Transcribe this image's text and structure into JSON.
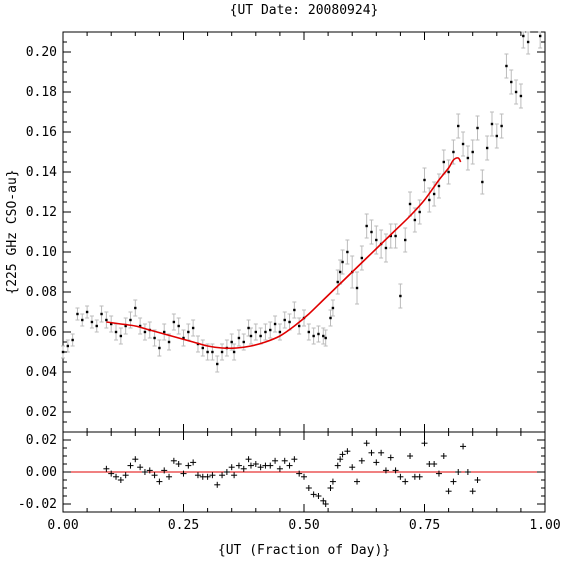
{
  "chart_data": {
    "type": "scatter",
    "title": "{UT Date: 20080924}",
    "xlabel": "{UT (Fraction of Day)}",
    "ylabel": "{225 GHz CSO-au}",
    "xlim": [
      0.0,
      1.0
    ],
    "ylim": [
      0.01,
      0.21
    ],
    "residual_ylim": [
      -0.025,
      0.025
    ],
    "x_ticks": [
      "0.00",
      "0.25",
      "0.50",
      "0.75",
      "1.00"
    ],
    "y_ticks": [
      "0.02",
      "0.04",
      "0.06",
      "0.08",
      "0.10",
      "0.12",
      "0.14",
      "0.16",
      "0.18",
      "0.20"
    ],
    "residual_ticks": [
      "0.02",
      "0.00",
      "-0.02"
    ],
    "grid": false,
    "colors": {
      "data": "#000000",
      "errorbars": "#bbbbbb",
      "fit": "#e00000",
      "zero_line": "#e00000"
    },
    "data_points": [
      {
        "x": 0.0,
        "y": 0.05,
        "e": 0.003
      },
      {
        "x": 0.01,
        "y": 0.053,
        "e": 0.003
      },
      {
        "x": 0.02,
        "y": 0.056,
        "e": 0.003
      },
      {
        "x": 0.03,
        "y": 0.069,
        "e": 0.003
      },
      {
        "x": 0.04,
        "y": 0.066,
        "e": 0.003
      },
      {
        "x": 0.05,
        "y": 0.07,
        "e": 0.003
      },
      {
        "x": 0.06,
        "y": 0.065,
        "e": 0.003
      },
      {
        "x": 0.07,
        "y": 0.063,
        "e": 0.003
      },
      {
        "x": 0.08,
        "y": 0.069,
        "e": 0.004
      },
      {
        "x": 0.09,
        "y": 0.066,
        "e": 0.004
      },
      {
        "x": 0.1,
        "y": 0.064,
        "e": 0.004
      },
      {
        "x": 0.11,
        "y": 0.06,
        "e": 0.004
      },
      {
        "x": 0.12,
        "y": 0.058,
        "e": 0.004
      },
      {
        "x": 0.13,
        "y": 0.063,
        "e": 0.004
      },
      {
        "x": 0.14,
        "y": 0.066,
        "e": 0.004
      },
      {
        "x": 0.15,
        "y": 0.072,
        "e": 0.004
      },
      {
        "x": 0.16,
        "y": 0.063,
        "e": 0.004
      },
      {
        "x": 0.17,
        "y": 0.06,
        "e": 0.004
      },
      {
        "x": 0.18,
        "y": 0.061,
        "e": 0.004
      },
      {
        "x": 0.19,
        "y": 0.057,
        "e": 0.004
      },
      {
        "x": 0.2,
        "y": 0.052,
        "e": 0.004
      },
      {
        "x": 0.21,
        "y": 0.06,
        "e": 0.004
      },
      {
        "x": 0.22,
        "y": 0.055,
        "e": 0.004
      },
      {
        "x": 0.23,
        "y": 0.065,
        "e": 0.004
      },
      {
        "x": 0.24,
        "y": 0.063,
        "e": 0.004
      },
      {
        "x": 0.25,
        "y": 0.057,
        "e": 0.004
      },
      {
        "x": 0.26,
        "y": 0.06,
        "e": 0.004
      },
      {
        "x": 0.27,
        "y": 0.062,
        "e": 0.004
      },
      {
        "x": 0.28,
        "y": 0.054,
        "e": 0.004
      },
      {
        "x": 0.29,
        "y": 0.052,
        "e": 0.004
      },
      {
        "x": 0.3,
        "y": 0.05,
        "e": 0.004
      },
      {
        "x": 0.31,
        "y": 0.05,
        "e": 0.004
      },
      {
        "x": 0.32,
        "y": 0.044,
        "e": 0.004
      },
      {
        "x": 0.33,
        "y": 0.05,
        "e": 0.004
      },
      {
        "x": 0.34,
        "y": 0.052,
        "e": 0.004
      },
      {
        "x": 0.35,
        "y": 0.055,
        "e": 0.004
      },
      {
        "x": 0.355,
        "y": 0.05,
        "e": 0.004
      },
      {
        "x": 0.365,
        "y": 0.057,
        "e": 0.004
      },
      {
        "x": 0.375,
        "y": 0.055,
        "e": 0.004
      },
      {
        "x": 0.385,
        "y": 0.062,
        "e": 0.004
      },
      {
        "x": 0.39,
        "y": 0.058,
        "e": 0.004
      },
      {
        "x": 0.4,
        "y": 0.06,
        "e": 0.004
      },
      {
        "x": 0.41,
        "y": 0.058,
        "e": 0.004
      },
      {
        "x": 0.42,
        "y": 0.06,
        "e": 0.004
      },
      {
        "x": 0.43,
        "y": 0.061,
        "e": 0.004
      },
      {
        "x": 0.44,
        "y": 0.064,
        "e": 0.004
      },
      {
        "x": 0.45,
        "y": 0.06,
        "e": 0.004
      },
      {
        "x": 0.46,
        "y": 0.066,
        "e": 0.004
      },
      {
        "x": 0.47,
        "y": 0.065,
        "e": 0.004
      },
      {
        "x": 0.48,
        "y": 0.071,
        "e": 0.004
      },
      {
        "x": 0.49,
        "y": 0.063,
        "e": 0.004
      },
      {
        "x": 0.5,
        "y": 0.067,
        "e": 0.004
      },
      {
        "x": 0.51,
        "y": 0.06,
        "e": 0.004
      },
      {
        "x": 0.52,
        "y": 0.058,
        "e": 0.004
      },
      {
        "x": 0.53,
        "y": 0.059,
        "e": 0.004
      },
      {
        "x": 0.54,
        "y": 0.058,
        "e": 0.004
      },
      {
        "x": 0.545,
        "y": 0.057,
        "e": 0.004
      },
      {
        "x": 0.555,
        "y": 0.067,
        "e": 0.004
      },
      {
        "x": 0.56,
        "y": 0.072,
        "e": 0.004
      },
      {
        "x": 0.57,
        "y": 0.085,
        "e": 0.006
      },
      {
        "x": 0.575,
        "y": 0.09,
        "e": 0.006
      },
      {
        "x": 0.58,
        "y": 0.095,
        "e": 0.006
      },
      {
        "x": 0.59,
        "y": 0.1,
        "e": 0.006
      },
      {
        "x": 0.6,
        "y": 0.09,
        "e": 0.008
      },
      {
        "x": 0.61,
        "y": 0.082,
        "e": 0.008
      },
      {
        "x": 0.62,
        "y": 0.097,
        "e": 0.006
      },
      {
        "x": 0.63,
        "y": 0.113,
        "e": 0.006
      },
      {
        "x": 0.64,
        "y": 0.11,
        "e": 0.006
      },
      {
        "x": 0.65,
        "y": 0.106,
        "e": 0.007
      },
      {
        "x": 0.66,
        "y": 0.104,
        "e": 0.007
      },
      {
        "x": 0.67,
        "y": 0.102,
        "e": 0.007
      },
      {
        "x": 0.68,
        "y": 0.108,
        "e": 0.006
      },
      {
        "x": 0.69,
        "y": 0.108,
        "e": 0.006
      },
      {
        "x": 0.7,
        "y": 0.078,
        "e": 0.006
      },
      {
        "x": 0.71,
        "y": 0.106,
        "e": 0.006
      },
      {
        "x": 0.72,
        "y": 0.124,
        "e": 0.006
      },
      {
        "x": 0.73,
        "y": 0.116,
        "e": 0.006
      },
      {
        "x": 0.74,
        "y": 0.12,
        "e": 0.006
      },
      {
        "x": 0.75,
        "y": 0.136,
        "e": 0.006
      },
      {
        "x": 0.76,
        "y": 0.126,
        "e": 0.006
      },
      {
        "x": 0.77,
        "y": 0.129,
        "e": 0.006
      },
      {
        "x": 0.78,
        "y": 0.133,
        "e": 0.006
      },
      {
        "x": 0.79,
        "y": 0.145,
        "e": 0.006
      },
      {
        "x": 0.8,
        "y": 0.14,
        "e": 0.006
      },
      {
        "x": 0.81,
        "y": 0.15,
        "e": 0.006
      },
      {
        "x": 0.82,
        "y": 0.163,
        "e": 0.006
      },
      {
        "x": 0.83,
        "y": 0.154,
        "e": 0.006
      },
      {
        "x": 0.84,
        "y": 0.147,
        "e": 0.006
      },
      {
        "x": 0.85,
        "y": 0.15,
        "e": 0.006
      },
      {
        "x": 0.86,
        "y": 0.162,
        "e": 0.006
      },
      {
        "x": 0.87,
        "y": 0.135,
        "e": 0.006
      },
      {
        "x": 0.88,
        "y": 0.152,
        "e": 0.006
      },
      {
        "x": 0.89,
        "y": 0.164,
        "e": 0.006
      },
      {
        "x": 0.9,
        "y": 0.158,
        "e": 0.006
      },
      {
        "x": 0.91,
        "y": 0.163,
        "e": 0.006
      },
      {
        "x": 0.92,
        "y": 0.193,
        "e": 0.006
      },
      {
        "x": 0.93,
        "y": 0.185,
        "e": 0.006
      },
      {
        "x": 0.94,
        "y": 0.18,
        "e": 0.006
      },
      {
        "x": 0.95,
        "y": 0.178,
        "e": 0.006
      },
      {
        "x": 0.955,
        "y": 0.208,
        "e": 0.006
      },
      {
        "x": 0.965,
        "y": 0.205,
        "e": 0.006
      },
      {
        "x": 0.99,
        "y": 0.208,
        "e": 0.006
      }
    ],
    "fit_curve": {
      "name": "",
      "x": [
        0.09,
        0.12,
        0.15,
        0.18,
        0.21,
        0.24,
        0.27,
        0.3,
        0.33,
        0.36,
        0.39,
        0.42,
        0.45,
        0.48,
        0.51,
        0.54,
        0.57,
        0.6,
        0.63,
        0.66,
        0.69,
        0.72,
        0.75,
        0.78,
        0.8,
        0.81,
        0.82,
        0.825
      ],
      "y": [
        0.065,
        0.064,
        0.063,
        0.061,
        0.059,
        0.057,
        0.055,
        0.053,
        0.052,
        0.052,
        0.053,
        0.055,
        0.058,
        0.063,
        0.069,
        0.076,
        0.083,
        0.09,
        0.097,
        0.104,
        0.111,
        0.118,
        0.126,
        0.136,
        0.142,
        0.146,
        0.147,
        0.145
      ]
    },
    "residuals": [
      {
        "x": 0.09,
        "y": 0.002
      },
      {
        "x": 0.1,
        "y": -0.001
      },
      {
        "x": 0.11,
        "y": -0.003
      },
      {
        "x": 0.12,
        "y": -0.005
      },
      {
        "x": 0.13,
        "y": -0.002
      },
      {
        "x": 0.14,
        "y": 0.004
      },
      {
        "x": 0.15,
        "y": 0.008
      },
      {
        "x": 0.16,
        "y": 0.003
      },
      {
        "x": 0.17,
        "y": 0.0
      },
      {
        "x": 0.18,
        "y": 0.001
      },
      {
        "x": 0.19,
        "y": -0.002
      },
      {
        "x": 0.2,
        "y": -0.006
      },
      {
        "x": 0.21,
        "y": 0.001
      },
      {
        "x": 0.22,
        "y": -0.003
      },
      {
        "x": 0.23,
        "y": 0.007
      },
      {
        "x": 0.24,
        "y": 0.005
      },
      {
        "x": 0.25,
        "y": -0.001
      },
      {
        "x": 0.26,
        "y": 0.004
      },
      {
        "x": 0.27,
        "y": 0.006
      },
      {
        "x": 0.28,
        "y": -0.002
      },
      {
        "x": 0.29,
        "y": -0.003
      },
      {
        "x": 0.3,
        "y": -0.003
      },
      {
        "x": 0.31,
        "y": -0.002
      },
      {
        "x": 0.32,
        "y": -0.008
      },
      {
        "x": 0.33,
        "y": -0.002
      },
      {
        "x": 0.34,
        "y": 0.0
      },
      {
        "x": 0.35,
        "y": 0.003
      },
      {
        "x": 0.355,
        "y": -0.002
      },
      {
        "x": 0.365,
        "y": 0.004
      },
      {
        "x": 0.375,
        "y": 0.002
      },
      {
        "x": 0.385,
        "y": 0.008
      },
      {
        "x": 0.39,
        "y": 0.004
      },
      {
        "x": 0.4,
        "y": 0.005
      },
      {
        "x": 0.41,
        "y": 0.003
      },
      {
        "x": 0.42,
        "y": 0.004
      },
      {
        "x": 0.43,
        "y": 0.004
      },
      {
        "x": 0.44,
        "y": 0.007
      },
      {
        "x": 0.45,
        "y": 0.002
      },
      {
        "x": 0.46,
        "y": 0.007
      },
      {
        "x": 0.47,
        "y": 0.004
      },
      {
        "x": 0.48,
        "y": 0.008
      },
      {
        "x": 0.49,
        "y": -0.001
      },
      {
        "x": 0.5,
        "y": -0.003
      },
      {
        "x": 0.51,
        "y": -0.01
      },
      {
        "x": 0.52,
        "y": -0.014
      },
      {
        "x": 0.53,
        "y": -0.015
      },
      {
        "x": 0.54,
        "y": -0.018
      },
      {
        "x": 0.545,
        "y": -0.02
      },
      {
        "x": 0.555,
        "y": -0.01
      },
      {
        "x": 0.56,
        "y": -0.006
      },
      {
        "x": 0.57,
        "y": 0.004
      },
      {
        "x": 0.575,
        "y": 0.008
      },
      {
        "x": 0.58,
        "y": 0.011
      },
      {
        "x": 0.59,
        "y": 0.013
      },
      {
        "x": 0.6,
        "y": 0.003
      },
      {
        "x": 0.61,
        "y": -0.006
      },
      {
        "x": 0.62,
        "y": 0.007
      },
      {
        "x": 0.63,
        "y": 0.018
      },
      {
        "x": 0.64,
        "y": 0.012
      },
      {
        "x": 0.65,
        "y": 0.006
      },
      {
        "x": 0.66,
        "y": 0.012
      },
      {
        "x": 0.67,
        "y": 0.001
      },
      {
        "x": 0.68,
        "y": 0.009
      },
      {
        "x": 0.69,
        "y": 0.001
      },
      {
        "x": 0.7,
        "y": -0.003
      },
      {
        "x": 0.71,
        "y": -0.006
      },
      {
        "x": 0.72,
        "y": 0.01
      },
      {
        "x": 0.73,
        "y": -0.003
      },
      {
        "x": 0.74,
        "y": -0.003
      },
      {
        "x": 0.75,
        "y": 0.018
      },
      {
        "x": 0.76,
        "y": 0.005
      },
      {
        "x": 0.77,
        "y": 0.005
      },
      {
        "x": 0.78,
        "y": -0.001
      },
      {
        "x": 0.79,
        "y": 0.01
      },
      {
        "x": 0.8,
        "y": -0.012
      },
      {
        "x": 0.81,
        "y": -0.006
      },
      {
        "x": 0.82,
        "y": 0.0
      },
      {
        "x": 0.83,
        "y": 0.016
      },
      {
        "x": 0.84,
        "y": 0.0
      },
      {
        "x": 0.85,
        "y": -0.012
      },
      {
        "x": 0.86,
        "y": -0.005
      }
    ]
  }
}
